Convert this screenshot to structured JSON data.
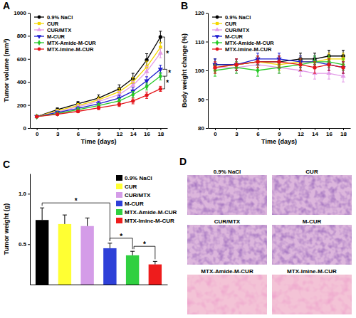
{
  "chart_data": [
    {
      "type": "line",
      "title": "A",
      "x_label": "Time (days)",
      "y_label": "Tumor volume (mm³)",
      "x": [
        0,
        3,
        6,
        9,
        12,
        14,
        16,
        18
      ],
      "xlim": [
        -1,
        19
      ],
      "xticks": [
        0,
        3,
        6,
        9,
        12,
        14,
        16,
        18
      ],
      "ylim": [
        0,
        1000
      ],
      "yticks": [
        0,
        200,
        400,
        600,
        800,
        1000
      ],
      "legend": "top-left",
      "annotations": [
        "*",
        "*",
        "*"
      ],
      "series": [
        {
          "name": "0.9% NaCl",
          "color": "#000000",
          "marker": "circle",
          "line_style": "solid",
          "values": [
            100,
            160,
            210,
            260,
            340,
            430,
            590,
            790
          ],
          "errors": [
            8,
            15,
            20,
            28,
            35,
            45,
            55,
            50
          ]
        },
        {
          "name": "CUR",
          "color": "#f5d800",
          "marker": "square",
          "line_style": "solid",
          "values": [
            100,
            150,
            195,
            245,
            315,
            400,
            530,
            700
          ],
          "errors": [
            8,
            14,
            18,
            25,
            30,
            40,
            50,
            45
          ]
        },
        {
          "name": "CUR/MTX",
          "color": "#e39be8",
          "marker": "triangle-up",
          "line_style": "solid",
          "values": [
            100,
            140,
            185,
            230,
            290,
            370,
            490,
            650
          ],
          "errors": [
            8,
            12,
            16,
            22,
            28,
            35,
            45,
            40
          ]
        },
        {
          "name": "M-CUR",
          "color": "#1c1ccf",
          "marker": "triangle-down",
          "line_style": "solid",
          "values": [
            100,
            135,
            170,
            210,
            260,
            320,
            410,
            510
          ],
          "errors": [
            8,
            12,
            15,
            20,
            25,
            30,
            35,
            35
          ]
        },
        {
          "name": "MTX-Amide-M-CUR",
          "color": "#26c926",
          "marker": "diamond",
          "line_style": "solid",
          "values": [
            100,
            125,
            160,
            195,
            235,
            290,
            360,
            450
          ],
          "errors": [
            7,
            10,
            14,
            18,
            22,
            28,
            30,
            32
          ]
        },
        {
          "name": "MTX-Imine-M-CUR",
          "color": "#e3161b",
          "marker": "circle",
          "line_style": "solid",
          "values": [
            100,
            120,
            145,
            175,
            205,
            235,
            285,
            340
          ],
          "errors": [
            6,
            10,
            12,
            15,
            18,
            25,
            28,
            22
          ]
        }
      ]
    },
    {
      "type": "line",
      "title": "B",
      "x_label": "Time (days)",
      "y_label": "Body weight change (%)",
      "x": [
        0,
        3,
        6,
        9,
        12,
        14,
        16,
        18
      ],
      "xlim": [
        -1,
        19
      ],
      "xticks": [
        0,
        3,
        6,
        9,
        12,
        14,
        16,
        18
      ],
      "ylim": [
        80,
        120
      ],
      "yticks": [
        80,
        90,
        100,
        110,
        120
      ],
      "legend": "top-left",
      "series": [
        {
          "name": "0.9% NaCl",
          "color": "#000000",
          "marker": "circle",
          "line_style": "solid",
          "values": [
            102,
            102,
            103,
            103,
            104,
            104,
            105,
            105
          ],
          "errors": [
            2,
            2,
            2,
            2,
            2,
            2,
            2,
            2
          ]
        },
        {
          "name": "CUR",
          "color": "#f5d800",
          "marker": "square",
          "line_style": "solid",
          "values": [
            101,
            102,
            103,
            102,
            103,
            103,
            104,
            104
          ],
          "errors": [
            2,
            2,
            2,
            2,
            2,
            2,
            2,
            2
          ]
        },
        {
          "name": "CUR/MTX",
          "color": "#e39be8",
          "marker": "triangle-up",
          "line_style": "solid",
          "values": [
            101,
            101,
            102,
            101,
            100,
            99,
            99,
            98
          ],
          "errors": [
            2,
            2,
            2,
            2,
            2,
            2,
            2,
            2
          ]
        },
        {
          "name": "M-CUR",
          "color": "#1c1ccf",
          "marker": "triangle-down",
          "line_style": "solid",
          "values": [
            102,
            102,
            104,
            104,
            103,
            103,
            102,
            101
          ],
          "errors": [
            2,
            2,
            2,
            2,
            2,
            2,
            2,
            2
          ]
        },
        {
          "name": "MTX-Amide-M-CUR",
          "color": "#26c926",
          "marker": "diamond",
          "line_style": "solid",
          "values": [
            100,
            101,
            100,
            101,
            102,
            103,
            103,
            102
          ],
          "errors": [
            2,
            2,
            2,
            2,
            2,
            2,
            2,
            2
          ]
        },
        {
          "name": "MTX-Imine-M-CUR",
          "color": "#e3161b",
          "marker": "circle",
          "line_style": "solid",
          "values": [
            101,
            102,
            103,
            103,
            102,
            101,
            102,
            101
          ],
          "errors": [
            2,
            2,
            2,
            2,
            2,
            2,
            2,
            2
          ]
        }
      ]
    },
    {
      "type": "bar",
      "title": "C",
      "y_label": "Tumor weight (g)",
      "categories": [
        "0.9% NaCl",
        "CUR",
        "CUR/MTX",
        "M-CUR",
        "MTX-Amide-M-CUR",
        "MTX-Imine-M-CUR"
      ],
      "values": [
        0.74,
        0.7,
        0.68,
        0.46,
        0.39,
        0.3
      ],
      "errors": [
        0.12,
        0.09,
        0.08,
        0.05,
        0.04,
        0.03
      ],
      "colors": [
        "#000000",
        "#ffff33",
        "#d49ce8",
        "#2e40d8",
        "#30d040",
        "#ee1c1c"
      ],
      "ylim": [
        0.1,
        1.2
      ],
      "yticks": [
        0.5,
        {
          "value": 1,
          "label": "1.0"
        }
      ],
      "tick_labels": "y",
      "legend": "top-right",
      "annotations": [
        "*",
        "*",
        "*"
      ]
    }
  ],
  "histology": {
    "title": "D",
    "labels": [
      "0.9% NaCl",
      "CUR",
      "CUR/MTX",
      "M-CUR",
      "MTX-Amide-M-CUR",
      "MTX-Imine-M-CUR"
    ]
  }
}
